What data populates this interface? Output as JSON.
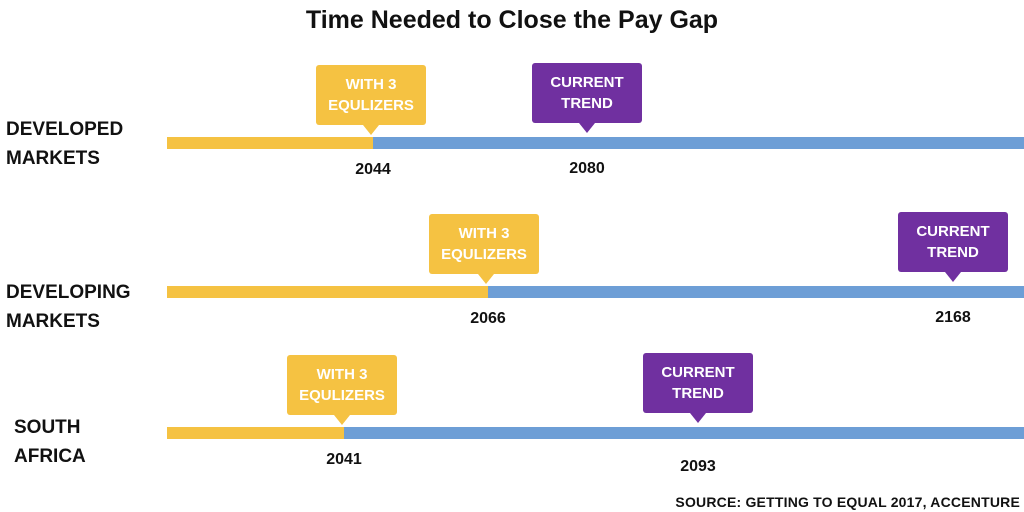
{
  "title": "Time Needed to Close the Pay Gap",
  "source": "SOURCE: GETTING TO EQUAL 2017, ACCENTURE",
  "colors": {
    "equalizers": "#F5C242",
    "current": "#6D9ED6",
    "callout_purple": "#7030A0"
  },
  "chart_data": {
    "type": "bar",
    "title": "Time Needed to Close the Pay Gap",
    "series": [
      {
        "name": "WITH 3 EQULIZERS",
        "values": [
          2044,
          2066,
          2041
        ]
      },
      {
        "name": "CURRENT TREND",
        "values": [
          2080,
          2168,
          2093
        ]
      }
    ],
    "categories": [
      "DEVELOPED MARKETS",
      "DEVELOPING MARKETS",
      "SOUTH AFRICA"
    ],
    "rows": [
      {
        "label": [
          "DEVELOPED",
          "MARKETS"
        ],
        "equalizers_year": 2044,
        "current_year": 2080
      },
      {
        "label": [
          "DEVELOPING",
          "MARKETS"
        ],
        "equalizers_year": 2066,
        "current_year": 2168
      },
      {
        "label": [
          "SOUTH",
          "AFRICA"
        ],
        "equalizers_year": 2041,
        "current_year": 2093
      }
    ],
    "callouts": {
      "equalizers": [
        "WITH 3",
        "EQULIZERS"
      ],
      "current": [
        "CURRENT",
        "TREND"
      ]
    }
  }
}
